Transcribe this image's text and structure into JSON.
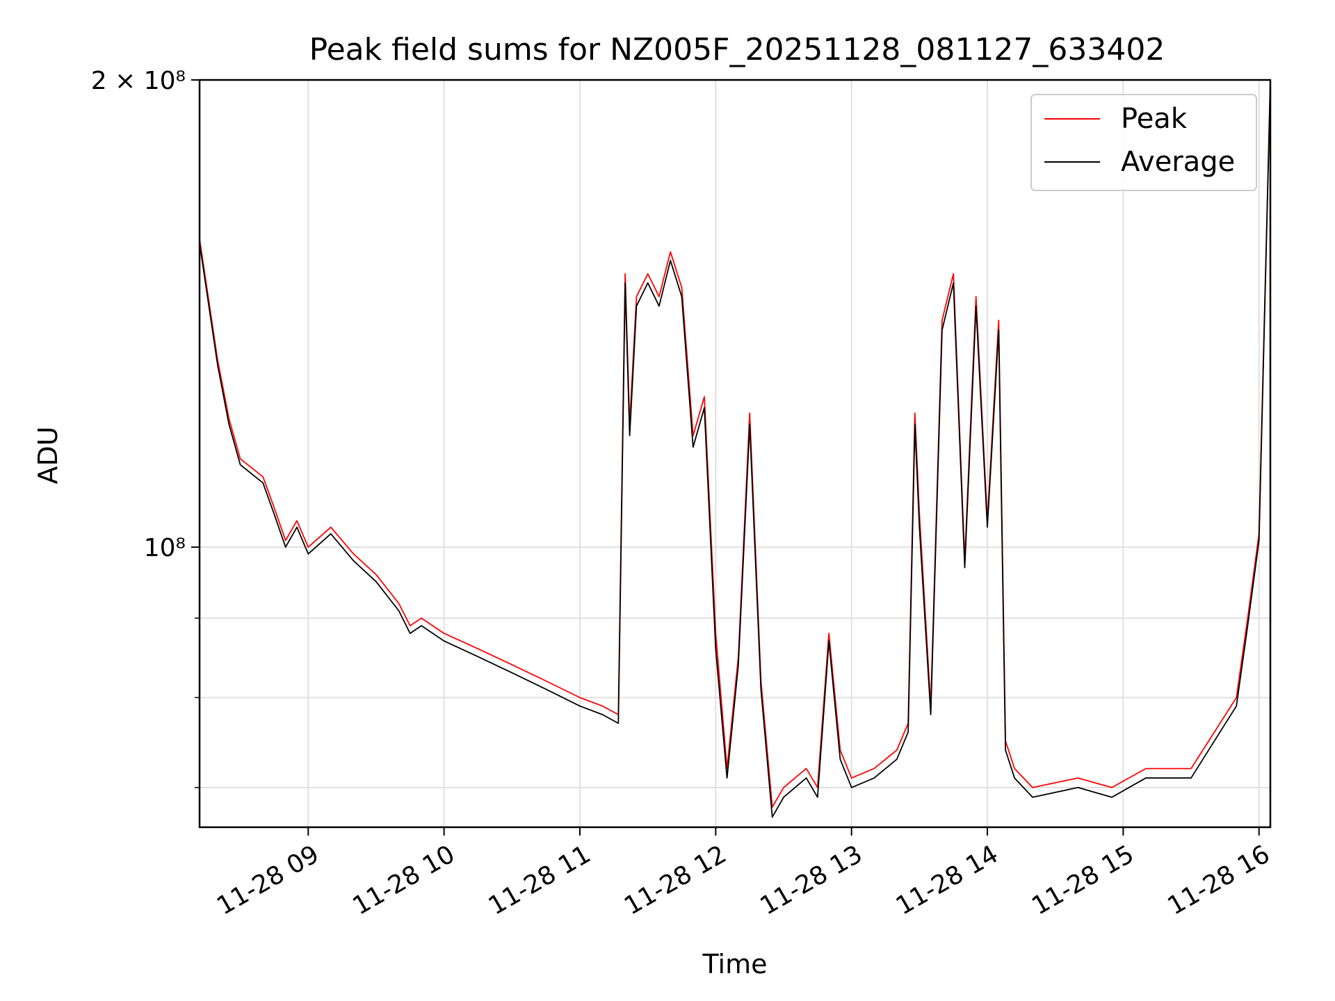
{
  "chart_data": {
    "type": "line",
    "title": "Peak field sums for NZ005F_20251128_081127_633402",
    "xlabel": "Time",
    "ylabel": "ADU",
    "y_scale": "log",
    "xlim": [
      "11-28 08:12",
      "11-28 16:05"
    ],
    "ylim": [
      66000000,
      200000000
    ],
    "x_ticks": [
      "11-28 09",
      "11-28 10",
      "11-28 11",
      "11-28 12",
      "11-28 13",
      "11-28 14",
      "11-28 15",
      "11-28 16"
    ],
    "y_tick_labels": [
      {
        "value": 200000000,
        "label": "2 × 10⁸"
      },
      {
        "value": 100000000,
        "label": "10⁸"
      }
    ],
    "grid": true,
    "legend_position": "top-right",
    "colors": {
      "Peak": "#ff0000",
      "Average": "#000000",
      "grid": "#e0e0e0"
    },
    "x": [
      "08:12",
      "08:20",
      "08:25",
      "08:30",
      "08:40",
      "08:45",
      "08:50",
      "08:55",
      "09:00",
      "09:10",
      "09:20",
      "09:30",
      "09:40",
      "09:45",
      "09:50",
      "10:00",
      "10:15",
      "10:30",
      "10:45",
      "11:00",
      "11:10",
      "11:17",
      "11:20",
      "11:22",
      "11:25",
      "11:30",
      "11:35",
      "11:40",
      "11:45",
      "11:50",
      "11:55",
      "12:00",
      "12:05",
      "12:10",
      "12:15",
      "12:20",
      "12:25",
      "12:30",
      "12:40",
      "12:45",
      "12:50",
      "12:55",
      "13:00",
      "13:10",
      "13:20",
      "13:25",
      "13:28",
      "13:30",
      "13:35",
      "13:40",
      "13:45",
      "13:50",
      "13:55",
      "14:00",
      "14:05",
      "14:08",
      "14:12",
      "14:20",
      "14:40",
      "14:55",
      "15:10",
      "15:30",
      "15:50",
      "15:55",
      "16:00",
      "16:05"
    ],
    "series": [
      {
        "name": "Peak",
        "values": [
          158000000,
          132000000,
          121000000,
          114000000,
          111000000,
          106000000,
          101000000,
          104000000,
          100000000,
          103000000,
          99000000,
          96000000,
          92000000,
          89000000,
          90000000,
          88000000,
          86000000,
          84000000,
          82000000,
          80000000,
          79000000,
          78000000,
          150000000,
          120000000,
          145000000,
          150000000,
          145000000,
          155000000,
          147000000,
          118000000,
          125000000,
          88000000,
          72000000,
          85000000,
          122000000,
          82000000,
          68000000,
          70000000,
          72000000,
          70000000,
          88000000,
          74000000,
          71000000,
          72000000,
          74000000,
          77000000,
          122000000,
          105000000,
          79000000,
          140000000,
          150000000,
          98000000,
          145000000,
          104000000,
          140000000,
          75000000,
          72000000,
          70000000,
          71000000,
          70000000,
          72000000,
          72000000,
          80000000,
          90000000,
          102000000,
          200000000
        ]
      },
      {
        "name": "Average",
        "values": [
          157000000,
          131000000,
          120000000,
          113000000,
          110000000,
          105000000,
          100000000,
          103000000,
          99000000,
          102000000,
          98000000,
          95000000,
          91000000,
          88000000,
          89000000,
          87000000,
          85000000,
          83000000,
          81000000,
          79000000,
          78000000,
          77000000,
          148000000,
          118000000,
          143000000,
          148000000,
          143000000,
          153000000,
          145000000,
          116000000,
          123000000,
          86000000,
          71000000,
          84000000,
          120000000,
          81000000,
          67000000,
          69000000,
          71000000,
          69000000,
          87000000,
          73000000,
          70000000,
          71000000,
          73000000,
          76000000,
          120000000,
          103000000,
          78000000,
          138000000,
          148000000,
          97000000,
          143000000,
          103000000,
          138000000,
          74000000,
          71000000,
          69000000,
          70000000,
          69000000,
          71000000,
          71000000,
          79000000,
          89000000,
          101000000,
          199000000
        ]
      }
    ]
  }
}
